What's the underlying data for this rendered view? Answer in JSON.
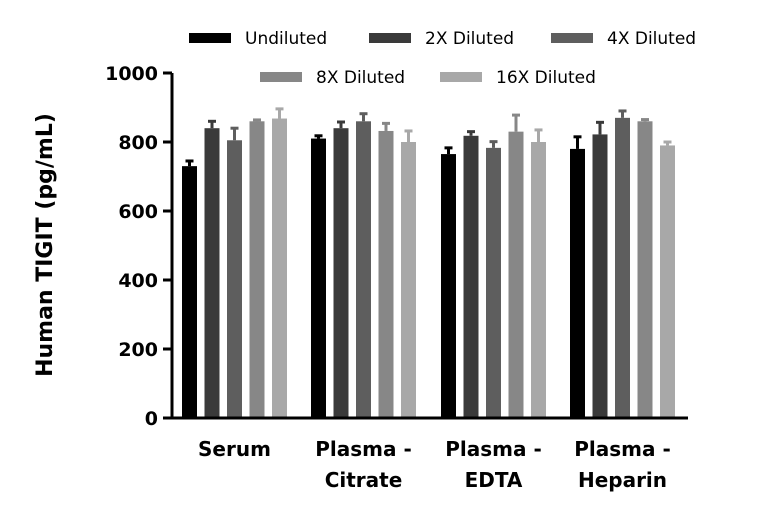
{
  "chart_data": {
    "type": "bar",
    "ylabel": "Human TIGIT (pg/mL)",
    "xlabel": "",
    "ylim": [
      0,
      1000
    ],
    "yticks": [
      0,
      200,
      400,
      600,
      800,
      1000
    ],
    "categories": [
      [
        "Serum"
      ],
      [
        "Plasma -",
        "Citrate"
      ],
      [
        "Plasma -",
        "EDTA"
      ],
      [
        "Plasma -",
        "Heparin"
      ]
    ],
    "series": [
      {
        "name": "Undiluted",
        "color": "#000000",
        "values": [
          730,
          810,
          765,
          780
        ],
        "errors": [
          15,
          8,
          18,
          35
        ]
      },
      {
        "name": "2X Diluted",
        "color": "#3a3a3a",
        "values": [
          840,
          840,
          818,
          822
        ],
        "errors": [
          20,
          18,
          12,
          35
        ]
      },
      {
        "name": "4X Diluted",
        "color": "#5e5e5e",
        "values": [
          805,
          860,
          783,
          870
        ],
        "errors": [
          35,
          22,
          18,
          20
        ]
      },
      {
        "name": "8X Diluted",
        "color": "#878787",
        "values": [
          860,
          832,
          830,
          860
        ],
        "errors": [
          4,
          22,
          48,
          5
        ]
      },
      {
        "name": "16X Diluted",
        "color": "#a8a8a8",
        "values": [
          868,
          800,
          800,
          790
        ],
        "errors": [
          28,
          32,
          35,
          10
        ]
      }
    ],
    "legend_position": "top",
    "grid": false
  }
}
